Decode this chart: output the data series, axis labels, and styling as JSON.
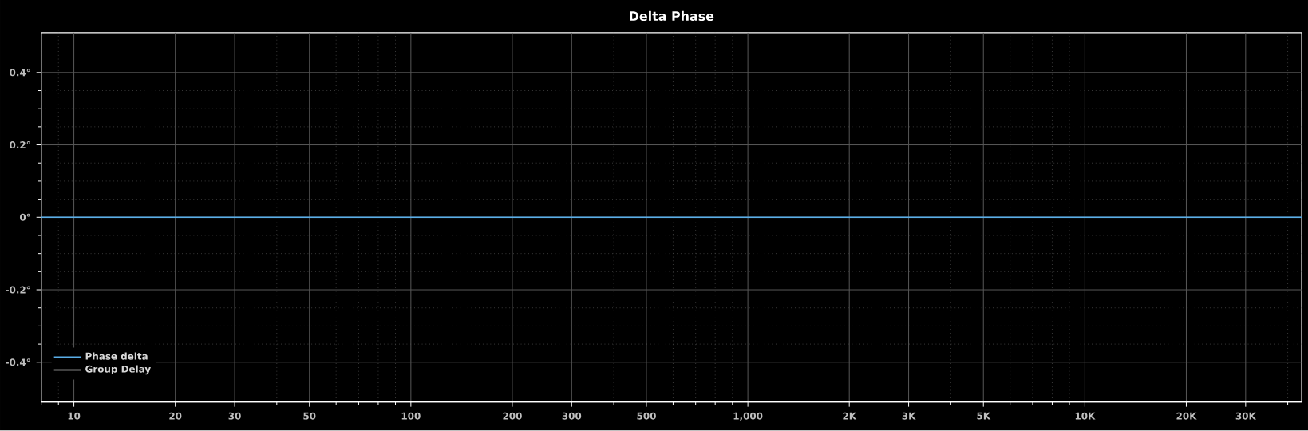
{
  "chart_data": {
    "type": "line",
    "title": "Delta Phase",
    "log": "x",
    "grid": true,
    "legend": "bottom left",
    "xlim": [
      8,
      44000
    ],
    "ylim": [
      -0.51,
      0.51
    ],
    "xticks": [
      10,
      20,
      30,
      50,
      100,
      200,
      300,
      500,
      {
        "value": 1000,
        "label": "1,000"
      },
      {
        "value": 2000,
        "label": "2K"
      },
      {
        "value": 3000,
        "label": "3K"
      },
      {
        "value": 5000,
        "label": "5K"
      },
      {
        "value": 10000,
        "label": "10K"
      },
      {
        "value": 20000,
        "label": "20K"
      },
      {
        "value": 30000,
        "label": "30K"
      }
    ],
    "yticks": [
      {
        "value": -0.4,
        "label": "-0.4°"
      },
      {
        "value": -0.2,
        "label": "-0.2°"
      },
      {
        "value": 0,
        "label": "0°"
      },
      {
        "value": 0.2,
        "label": "0.2°"
      },
      {
        "value": 0.4,
        "label": "0.4°"
      }
    ],
    "x": [
      8,
      44000
    ],
    "series": [
      {
        "name": "Phase delta",
        "color": "#5aaee8",
        "values": [
          0,
          0
        ]
      },
      {
        "name": "Group Delay",
        "color": "#808080",
        "values": [
          null,
          null
        ]
      }
    ]
  }
}
